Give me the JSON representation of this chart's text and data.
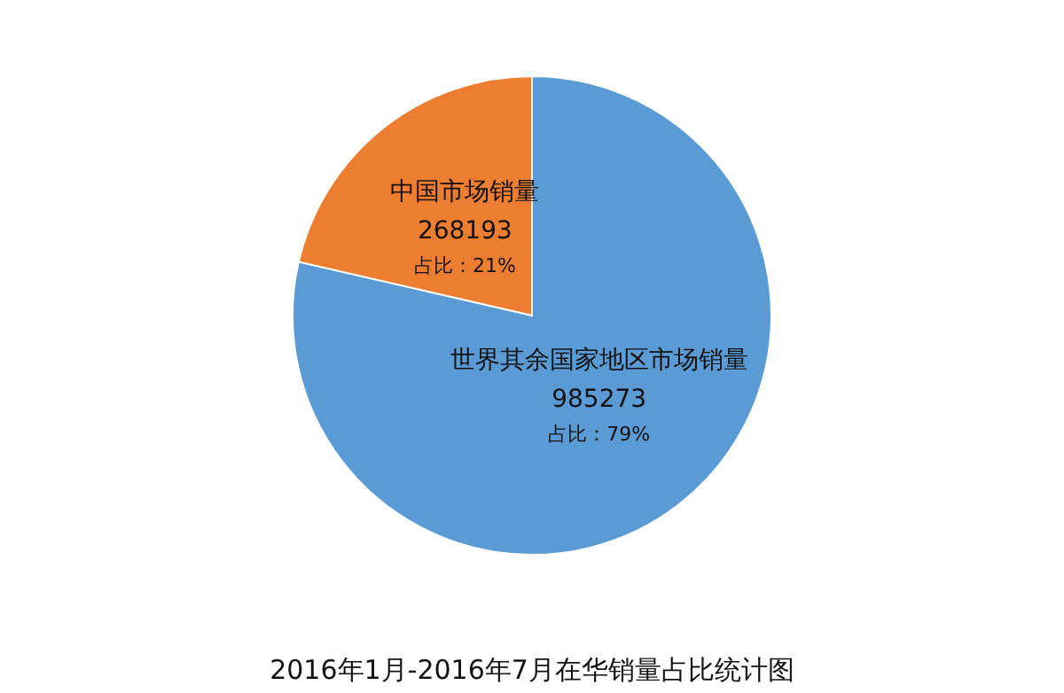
{
  "chart_data": {
    "type": "pie",
    "title": "2016年1月-2016年7月在华销量占比统计图",
    "categories": [
      "世界其余国家地区市场销量",
      "中国市场销量"
    ],
    "values": [
      985273,
      268193
    ],
    "colors": [
      "#5b9bd5",
      "#ed7d31"
    ],
    "data_labels": true,
    "annotations": [
      "占比：79%",
      "占比：21%"
    ]
  }
}
